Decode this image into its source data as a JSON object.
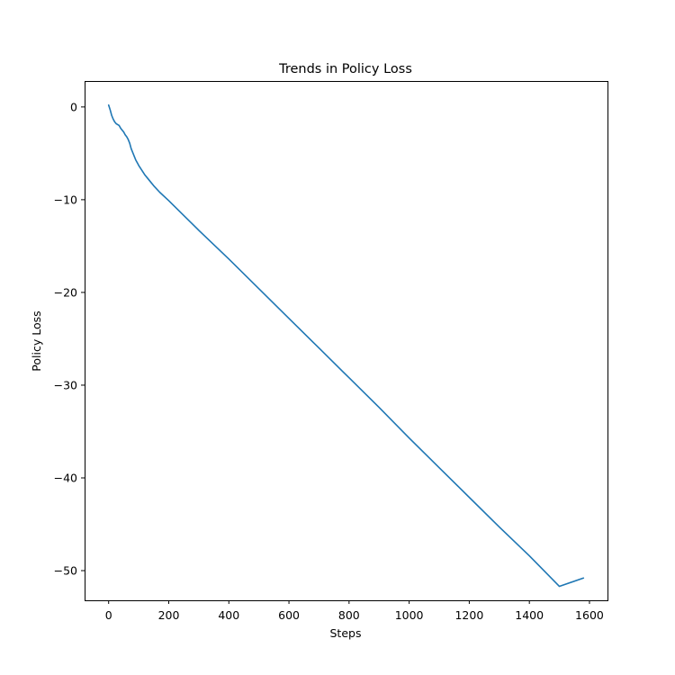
{
  "chart_data": {
    "type": "line",
    "title": "Trends in Policy Loss",
    "xlabel": "Steps",
    "ylabel": "Policy Loss",
    "xlim": [
      -80,
      1660
    ],
    "ylim": [
      -53.2,
      2.8
    ],
    "xticks": [
      0,
      200,
      400,
      600,
      800,
      1000,
      1200,
      1400,
      1600
    ],
    "yticks": [
      0,
      -10,
      -20,
      -30,
      -40,
      -50
    ],
    "xtick_labels": [
      "0",
      "200",
      "400",
      "600",
      "800",
      "1000",
      "1200",
      "1400",
      "1600"
    ],
    "ytick_labels": [
      "0",
      "−10",
      "−20",
      "−30",
      "−40",
      "−50"
    ],
    "grid": false,
    "series": [
      {
        "color": "#1f77b4",
        "x": [
          0,
          5,
          10,
          15,
          20,
          25,
          30,
          35,
          40,
          45,
          50,
          55,
          60,
          65,
          70,
          75,
          80,
          85,
          90,
          95,
          100,
          110,
          120,
          130,
          140,
          150,
          170,
          200,
          250,
          300,
          400,
          500,
          600,
          700,
          800,
          900,
          1000,
          1100,
          1200,
          1300,
          1400,
          1500,
          1580
        ],
        "y": [
          0.2,
          -0.3,
          -0.9,
          -1.3,
          -1.6,
          -1.8,
          -1.9,
          -2.0,
          -2.3,
          -2.5,
          -2.7,
          -3.0,
          -3.2,
          -3.5,
          -3.9,
          -4.5,
          -4.9,
          -5.3,
          -5.7,
          -6.0,
          -6.3,
          -6.8,
          -7.3,
          -7.7,
          -8.1,
          -8.5,
          -9.2,
          -10.1,
          -11.7,
          -13.3,
          -16.4,
          -19.6,
          -22.8,
          -26.0,
          -29.2,
          -32.4,
          -35.7,
          -38.9,
          -42.1,
          -45.3,
          -48.4,
          -51.7,
          -50.8
        ]
      }
    ]
  }
}
